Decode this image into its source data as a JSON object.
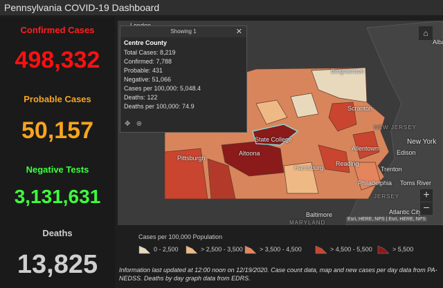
{
  "header": {
    "title": "Pennsylvania COVID-19 Dashboard"
  },
  "stats": [
    {
      "label": "Confirmed Cases",
      "value": "498,332"
    },
    {
      "label": "Probable Cases",
      "value": "50,157"
    },
    {
      "label": "Negative Tests",
      "value": "3,131,631"
    },
    {
      "label": "Deaths",
      "value": "13,825"
    }
  ],
  "popup": {
    "heading": "Showing 1",
    "county": "Centre County",
    "lines": [
      "Total Cases: 8,219",
      "Confirmed: 7,788",
      "Probable: 431",
      "Negative: 51,066",
      "Cases per 100,000: 5,048.4",
      "Deaths: 122",
      "Deaths per 100,000: 74.9"
    ]
  },
  "map": {
    "labels": [
      "London",
      "Binghamton",
      "Scranton",
      "NEW JERSEY",
      "New York",
      "Allentown",
      "Edison",
      "Trenton",
      "Philadelphia",
      "Toms River",
      "Reading",
      "Harrisburg",
      "Altoona",
      "State College",
      "Pittsburgh",
      "Baltimore",
      "MARYLAND",
      "Atlantic City",
      "Alban",
      "JERSEY"
    ],
    "attribution": "Esri, HERE, NPS | Esri, HERE, NPS"
  },
  "legend": {
    "title": "Cases per 100,000 Population",
    "items": [
      "0 - 2,500",
      "> 2,500 - 3,500",
      "> 3,500 - 4,500",
      "> 4,500 - 5,500",
      "> 5,500"
    ]
  },
  "footer": "Information last updated at 12:00 noon on 12/19/2020. Case count data, map and new cases per day data from PA-NEDSS.  Deaths by day graph data from EDRS."
}
